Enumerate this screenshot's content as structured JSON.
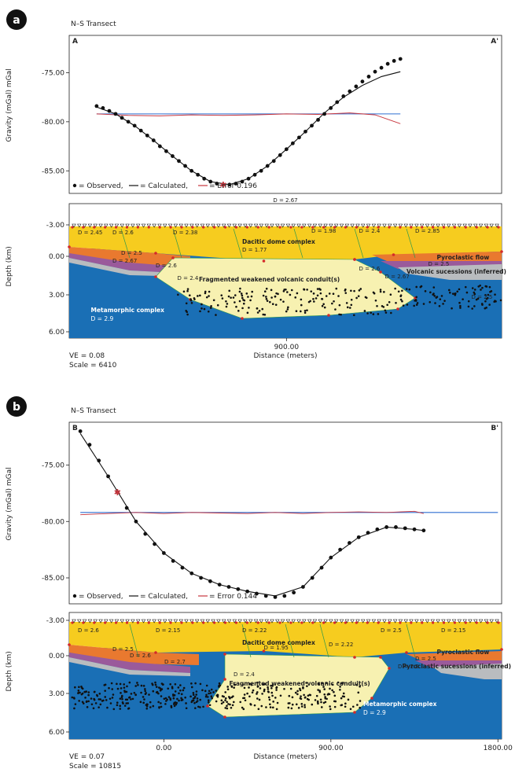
{
  "panels": [
    {
      "letter": "a",
      "transect_title": "N–S Transect",
      "corner_left": "A",
      "corner_right": "A'",
      "gravity_ylabel": "Gravity (mGal) mGal",
      "depth_ylabel": "Depth (km)",
      "xlabel": "Distance (meters)",
      "gravity_ticks": [
        "-75.00",
        "-80.00",
        "-85.00"
      ],
      "depth_ticks": [
        "-3.00",
        "0.00",
        "3.00",
        "6.00"
      ],
      "x_ticks": [
        "900.00"
      ],
      "legend": {
        "observed": "= Observed,",
        "calculated": "= Calculated,",
        "error": "= Error 0.196"
      },
      "top_density": "D = 2.67",
      "ve": "VE = 0.08",
      "scale": "Scale = 6410",
      "unit_labels": {
        "dacitic": "Dacitic dome complex",
        "fragmented": "Fragmented weakened volcanic conduit(s)",
        "metamorphic": "Metamorphic complex",
        "metamorphic_d": "D = 2.9",
        "pyroclastic": "Pyroclastic flow",
        "volcanic": "Volcanic sucessions (inferred)"
      },
      "densities": [
        "D = 2.45",
        "D = 2.6",
        "D = 2.38",
        "D = 1.77",
        "D = 1.98",
        "D = 2.4",
        "D = 2.85",
        "D = 2.5",
        "D = 2.67",
        "D = 2.6",
        "D = 2.4",
        "D = 2.6",
        "D = 2.5",
        "D = 2.67",
        "D = 2.5"
      ]
    },
    {
      "letter": "b",
      "transect_title": "N–S Transect",
      "corner_left": "B",
      "corner_right": "B'",
      "gravity_ylabel": "Gravity (mGal) mGal",
      "depth_ylabel": "Depth (km)",
      "xlabel": "Distance (meters)",
      "gravity_ticks": [
        "-75.00",
        "-80.00",
        "-85.00"
      ],
      "depth_ticks": [
        "-3.00",
        "0.00",
        "3.00",
        "6.00"
      ],
      "x_ticks": [
        "0.00",
        "900.00",
        "1800.00"
      ],
      "legend": {
        "observed": "= Observed,",
        "calculated": "= Calculated,",
        "error": "= Error 0.144"
      },
      "ve": "VE = 0.07",
      "scale": "Scale = 10815",
      "unit_labels": {
        "dacitic": "Dacitic dome complex",
        "fragmented": "Fragmented weakened volcanic conduit(s)",
        "metamorphic": "Metamorphic complex",
        "metamorphic_d": "D = 2.9",
        "pyroclastic": "Pyroclastic flow",
        "volcanic": "Pyroclastic sucessions (inferred)"
      },
      "densities": [
        "D = 2.6",
        "D = 2.15",
        "D = 2.22",
        "D = 1.95",
        "D = 2.22",
        "D = 2.5",
        "D = 2.15",
        "D = 2.5",
        "D = 2.6",
        "D = 2.7",
        "D = 2.4",
        "D = 2.5",
        "D = 2.5"
      ]
    }
  ],
  "chart_data": [
    {
      "type": "line",
      "title": "N–S Transect",
      "ylabel": "Gravity (mGal) mGal",
      "ylim": [
        -87.3,
        -71.2
      ],
      "series": [
        {
          "name": "Observed",
          "x": [
            0,
            30,
            60,
            90,
            120,
            150,
            180,
            210,
            240,
            270,
            300,
            330,
            360,
            390,
            420,
            450,
            480,
            510,
            540,
            570,
            600,
            630,
            660,
            690,
            720,
            750,
            780,
            810,
            840,
            870,
            900,
            930,
            960,
            990,
            1020,
            1050,
            1080,
            1110,
            1140,
            1170,
            1200,
            1230,
            1260,
            1290,
            1320,
            1350,
            1380,
            1410,
            1440
          ],
          "y": [
            -78.4,
            -78.6,
            -78.9,
            -79.2,
            -79.6,
            -80.0,
            -80.4,
            -80.9,
            -81.4,
            -81.9,
            -82.5,
            -83.0,
            -83.5,
            -84.0,
            -84.5,
            -85.0,
            -85.4,
            -85.8,
            -86.1,
            -86.3,
            -86.4,
            -86.4,
            -86.3,
            -86.1,
            -85.8,
            -85.4,
            -85.0,
            -84.5,
            -84.0,
            -83.4,
            -82.8,
            -82.2,
            -81.6,
            -81.0,
            -80.4,
            -79.8,
            -79.2,
            -78.6,
            -78.0,
            -77.4,
            -76.9,
            -76.4,
            -75.9,
            -75.4,
            -74.9,
            -74.5,
            -74.1,
            -73.8,
            -73.6
          ]
        },
        {
          "name": "Calculated",
          "x": [
            0,
            90,
            180,
            270,
            360,
            450,
            540,
            630,
            720,
            810,
            900,
            990,
            1080,
            1170,
            1260,
            1350,
            1440
          ],
          "y": [
            -78.5,
            -79.2,
            -80.4,
            -81.9,
            -83.5,
            -85.0,
            -86.1,
            -86.4,
            -85.8,
            -84.5,
            -82.8,
            -81.0,
            -79.1,
            -77.5,
            -76.3,
            -75.4,
            -74.9
          ]
        },
        {
          "name": "Error",
          "x": [
            0,
            150,
            300,
            450,
            600,
            750,
            900,
            1050,
            1200,
            1320,
            1440
          ],
          "y": [
            -79.2,
            -79.35,
            -79.4,
            -79.3,
            -79.35,
            -79.3,
            -79.2,
            -79.25,
            -79.1,
            -79.3,
            -80.2
          ]
        },
        {
          "name": "Reference",
          "x": [
            0,
            1440
          ],
          "y": [
            -79.2,
            -79.2
          ]
        }
      ]
    },
    {
      "type": "line",
      "title": "N–S Transect",
      "ylabel": "Gravity (mGal) mGal",
      "xlabel": "Distance (meters)",
      "x_ticks": [
        0,
        900,
        1800
      ],
      "ylim": [
        -87.3,
        -71.2
      ],
      "series": [
        {
          "name": "Observed",
          "x": [
            -450,
            -400,
            -350,
            -300,
            -250,
            -200,
            -150,
            -100,
            -50,
            0,
            50,
            100,
            150,
            200,
            250,
            300,
            350,
            400,
            450,
            500,
            550,
            600,
            650,
            700,
            750,
            800,
            850,
            900,
            950,
            1000,
            1050,
            1100,
            1150,
            1200,
            1250,
            1300,
            1350,
            1400
          ],
          "y": [
            -72.0,
            -73.2,
            -74.6,
            -76.0,
            -77.4,
            -78.8,
            -80.0,
            -81.1,
            -82.0,
            -82.8,
            -83.5,
            -84.1,
            -84.6,
            -85.0,
            -85.3,
            -85.6,
            -85.8,
            -86.0,
            -86.2,
            -86.4,
            -86.6,
            -86.7,
            -86.6,
            -86.3,
            -85.8,
            -85.0,
            -84.1,
            -83.2,
            -82.5,
            -81.9,
            -81.4,
            -81.0,
            -80.7,
            -80.5,
            -80.5,
            -80.6,
            -80.7,
            -80.8
          ]
        },
        {
          "name": "Calculated",
          "x": [
            -450,
            -300,
            -150,
            0,
            150,
            300,
            450,
            600,
            750,
            900,
            1050,
            1200,
            1350,
            1400
          ],
          "y": [
            -72.2,
            -76.0,
            -80.0,
            -82.8,
            -84.6,
            -85.6,
            -86.2,
            -86.6,
            -85.8,
            -83.2,
            -81.4,
            -80.5,
            -80.7,
            -80.8
          ]
        },
        {
          "name": "Error",
          "x": [
            -450,
            -300,
            -150,
            0,
            150,
            300,
            450,
            600,
            750,
            900,
            1050,
            1200,
            1350,
            1400
          ],
          "y": [
            -79.4,
            -79.3,
            -79.2,
            -79.3,
            -79.2,
            -79.25,
            -79.3,
            -79.2,
            -79.3,
            -79.2,
            -79.15,
            -79.2,
            -79.1,
            -79.3
          ]
        },
        {
          "name": "Reference",
          "x": [
            -450,
            1800
          ],
          "y": [
            -79.2,
            -79.2
          ]
        }
      ]
    }
  ],
  "colors": {
    "metamorphic": "#1a6fb5",
    "dacitic": "#f6cc1f",
    "fragmented": "#f7f1b1",
    "pyroclastic": "#e9792f",
    "volcanic": "#b9bcbf",
    "purple": "#9a5a9b",
    "green_lines": "#2f9a4b",
    "reference_line": "#2f6fd1",
    "error_line": "#c8363e",
    "vertex": "#d42a2a"
  }
}
